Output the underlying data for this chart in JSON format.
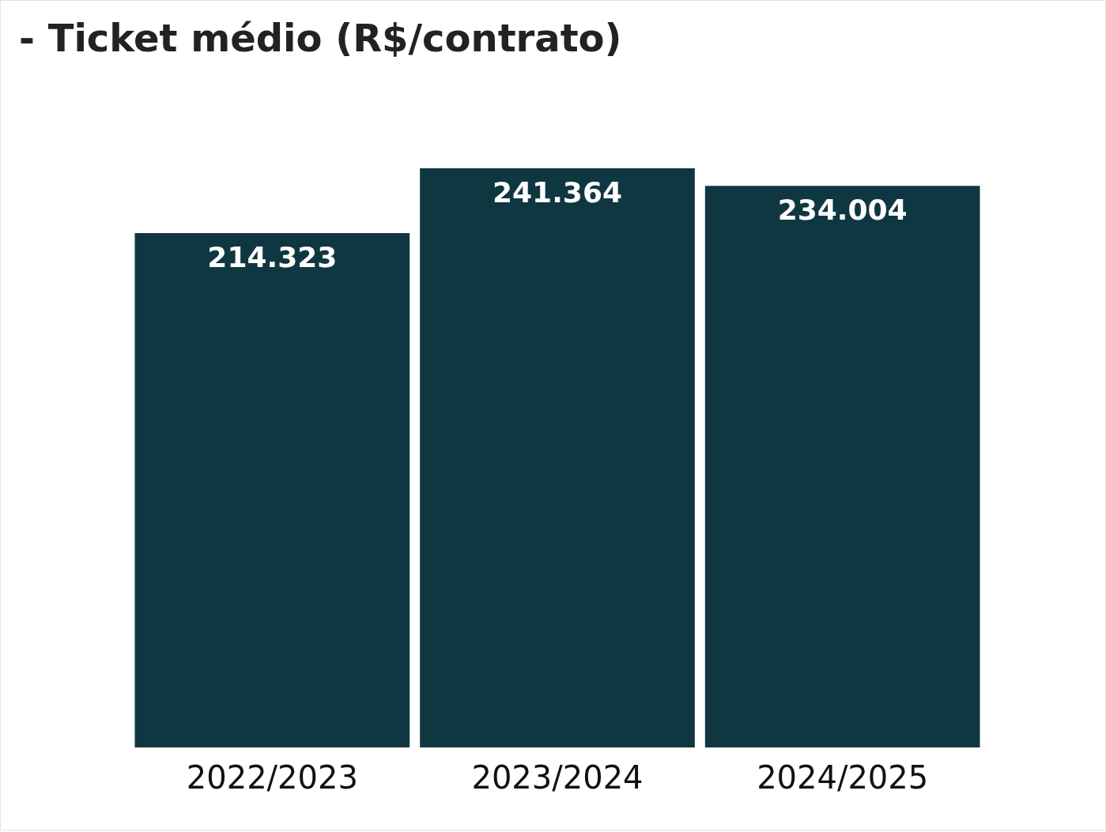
{
  "chart_data": {
    "type": "bar",
    "title": "- Ticket médio (R$/contrato)",
    "categories": [
      "2022/2023",
      "2023/2024",
      "2024/2025"
    ],
    "values": [
      214323,
      241364,
      234004
    ],
    "value_labels": [
      "214.323",
      "241.364",
      "234.004"
    ],
    "color": "#0f3741"
  }
}
